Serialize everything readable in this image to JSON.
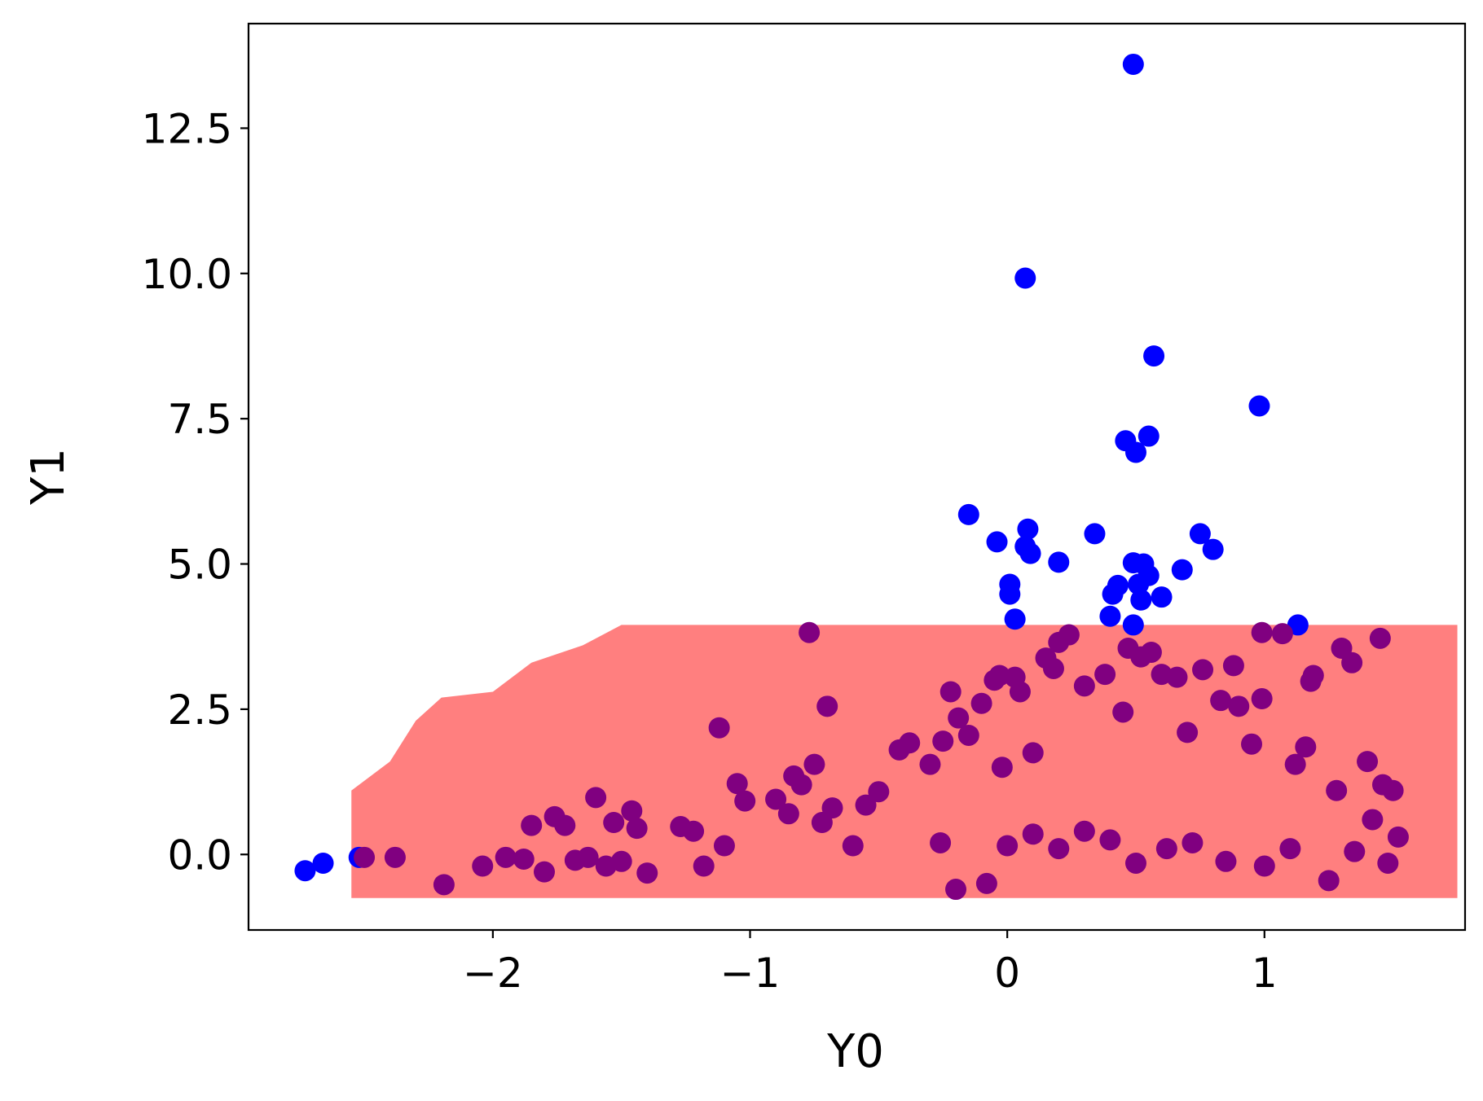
{
  "chart_data": {
    "type": "scatter",
    "xlabel": "Y0",
    "ylabel": "Y1",
    "xlim": [
      -2.95,
      1.78
    ],
    "ylim": [
      -1.3,
      14.3
    ],
    "xticks": [
      -2,
      -1,
      0,
      1
    ],
    "xtick_labels": [
      "−2",
      "−1",
      "0",
      "1"
    ],
    "yticks": [
      0.0,
      2.5,
      5.0,
      7.5,
      10.0,
      12.5
    ],
    "ytick_labels": [
      "0.0",
      "2.5",
      "5.0",
      "7.5",
      "10.0",
      "12.5"
    ],
    "grid": false,
    "region": {
      "color": "#ff7f7f",
      "x_range": [
        -2.55,
        1.75
      ],
      "y_range": [
        -0.75,
        3.95
      ],
      "ragged_top_left": [
        [
          -2.55,
          1.1
        ],
        [
          -2.4,
          1.6
        ],
        [
          -2.3,
          2.3
        ],
        [
          -2.2,
          2.7
        ],
        [
          -2.0,
          2.8
        ],
        [
          -1.85,
          3.3
        ],
        [
          -1.65,
          3.6
        ],
        [
          -1.5,
          3.95
        ]
      ]
    },
    "series": [
      {
        "color": "#0000ff",
        "points": [
          [
            -2.73,
            -0.28
          ],
          [
            -2.66,
            -0.15
          ],
          [
            -2.52,
            -0.05
          ],
          [
            0.49,
            13.6
          ],
          [
            0.07,
            9.92
          ],
          [
            0.57,
            8.58
          ],
          [
            0.98,
            7.72
          ],
          [
            0.46,
            7.12
          ],
          [
            0.55,
            7.2
          ],
          [
            0.5,
            6.92
          ],
          [
            -0.15,
            5.85
          ],
          [
            -0.04,
            5.38
          ],
          [
            0.08,
            5.6
          ],
          [
            0.07,
            5.3
          ],
          [
            0.09,
            5.18
          ],
          [
            0.34,
            5.52
          ],
          [
            0.75,
            5.52
          ],
          [
            0.8,
            5.25
          ],
          [
            0.2,
            5.03
          ],
          [
            0.49,
            5.02
          ],
          [
            0.53,
            5.0
          ],
          [
            0.55,
            4.8
          ],
          [
            0.51,
            4.65
          ],
          [
            0.68,
            4.9
          ],
          [
            0.01,
            4.65
          ],
          [
            0.01,
            4.48
          ],
          [
            0.43,
            4.63
          ],
          [
            0.41,
            4.48
          ],
          [
            0.6,
            4.43
          ],
          [
            0.52,
            4.38
          ],
          [
            0.03,
            4.05
          ],
          [
            0.4,
            4.1
          ],
          [
            0.49,
            3.95
          ],
          [
            1.13,
            3.95
          ]
        ]
      },
      {
        "color": "#800080",
        "points": [
          [
            -2.5,
            -0.05
          ],
          [
            -2.38,
            -0.05
          ],
          [
            -2.19,
            -0.52
          ],
          [
            -2.04,
            -0.2
          ],
          [
            -1.95,
            -0.05
          ],
          [
            -1.88,
            -0.08
          ],
          [
            -1.85,
            0.5
          ],
          [
            -1.8,
            -0.3
          ],
          [
            -1.76,
            0.65
          ],
          [
            -1.72,
            0.5
          ],
          [
            -1.68,
            -0.1
          ],
          [
            -1.63,
            -0.05
          ],
          [
            -1.6,
            0.98
          ],
          [
            -1.56,
            -0.2
          ],
          [
            -1.53,
            0.55
          ],
          [
            -1.5,
            -0.12
          ],
          [
            -1.46,
            0.75
          ],
          [
            -1.44,
            0.45
          ],
          [
            -1.4,
            -0.32
          ],
          [
            -1.27,
            0.48
          ],
          [
            -1.22,
            0.4
          ],
          [
            -1.18,
            -0.2
          ],
          [
            -1.12,
            2.18
          ],
          [
            -1.1,
            0.15
          ],
          [
            -1.05,
            1.22
          ],
          [
            -1.02,
            0.92
          ],
          [
            -0.9,
            0.95
          ],
          [
            -0.85,
            0.7
          ],
          [
            -0.83,
            1.35
          ],
          [
            -0.8,
            1.2
          ],
          [
            -0.77,
            3.82
          ],
          [
            -0.75,
            1.55
          ],
          [
            -0.72,
            0.55
          ],
          [
            -0.7,
            2.55
          ],
          [
            -0.68,
            0.8
          ],
          [
            -0.6,
            0.15
          ],
          [
            -0.55,
            0.85
          ],
          [
            -0.5,
            1.08
          ],
          [
            -0.42,
            1.8
          ],
          [
            -0.38,
            1.92
          ],
          [
            -0.3,
            1.55
          ],
          [
            -0.25,
            1.95
          ],
          [
            -0.22,
            2.8
          ],
          [
            -0.19,
            2.35
          ],
          [
            -0.15,
            2.05
          ],
          [
            -0.1,
            2.6
          ],
          [
            -0.05,
            3.0
          ],
          [
            -0.03,
            3.08
          ],
          [
            0.03,
            3.05
          ],
          [
            0.05,
            2.8
          ],
          [
            -0.02,
            1.5
          ],
          [
            0.1,
            1.75
          ],
          [
            0.15,
            3.38
          ],
          [
            0.18,
            3.2
          ],
          [
            0.2,
            3.65
          ],
          [
            0.24,
            3.78
          ],
          [
            0.3,
            2.9
          ],
          [
            0.38,
            3.1
          ],
          [
            0.45,
            2.45
          ],
          [
            0.47,
            3.55
          ],
          [
            0.52,
            3.4
          ],
          [
            0.56,
            3.48
          ],
          [
            0.6,
            3.1
          ],
          [
            0.66,
            3.05
          ],
          [
            0.7,
            2.1
          ],
          [
            0.76,
            3.18
          ],
          [
            0.83,
            2.65
          ],
          [
            0.88,
            3.25
          ],
          [
            0.9,
            2.55
          ],
          [
            0.95,
            1.9
          ],
          [
            0.99,
            3.82
          ],
          [
            0.99,
            2.68
          ],
          [
            1.07,
            3.8
          ],
          [
            1.12,
            1.55
          ],
          [
            1.16,
            1.85
          ],
          [
            1.18,
            2.98
          ],
          [
            1.19,
            3.08
          ],
          [
            1.28,
            1.1
          ],
          [
            1.3,
            3.55
          ],
          [
            1.34,
            3.3
          ],
          [
            1.4,
            1.6
          ],
          [
            1.45,
            3.72
          ],
          [
            1.46,
            1.2
          ],
          [
            1.5,
            1.1
          ],
          [
            1.52,
            0.3
          ],
          [
            -0.26,
            0.2
          ],
          [
            -0.2,
            -0.6
          ],
          [
            -0.08,
            -0.5
          ],
          [
            0.0,
            0.15
          ],
          [
            0.1,
            0.35
          ],
          [
            0.2,
            0.1
          ],
          [
            0.3,
            0.4
          ],
          [
            0.4,
            0.25
          ],
          [
            0.5,
            -0.15
          ],
          [
            0.62,
            0.1
          ],
          [
            0.72,
            0.2
          ],
          [
            0.85,
            -0.12
          ],
          [
            1.0,
            -0.2
          ],
          [
            1.1,
            0.1
          ],
          [
            1.25,
            -0.45
          ],
          [
            1.35,
            0.05
          ],
          [
            1.42,
            0.6
          ],
          [
            1.48,
            -0.15
          ]
        ]
      }
    ]
  }
}
